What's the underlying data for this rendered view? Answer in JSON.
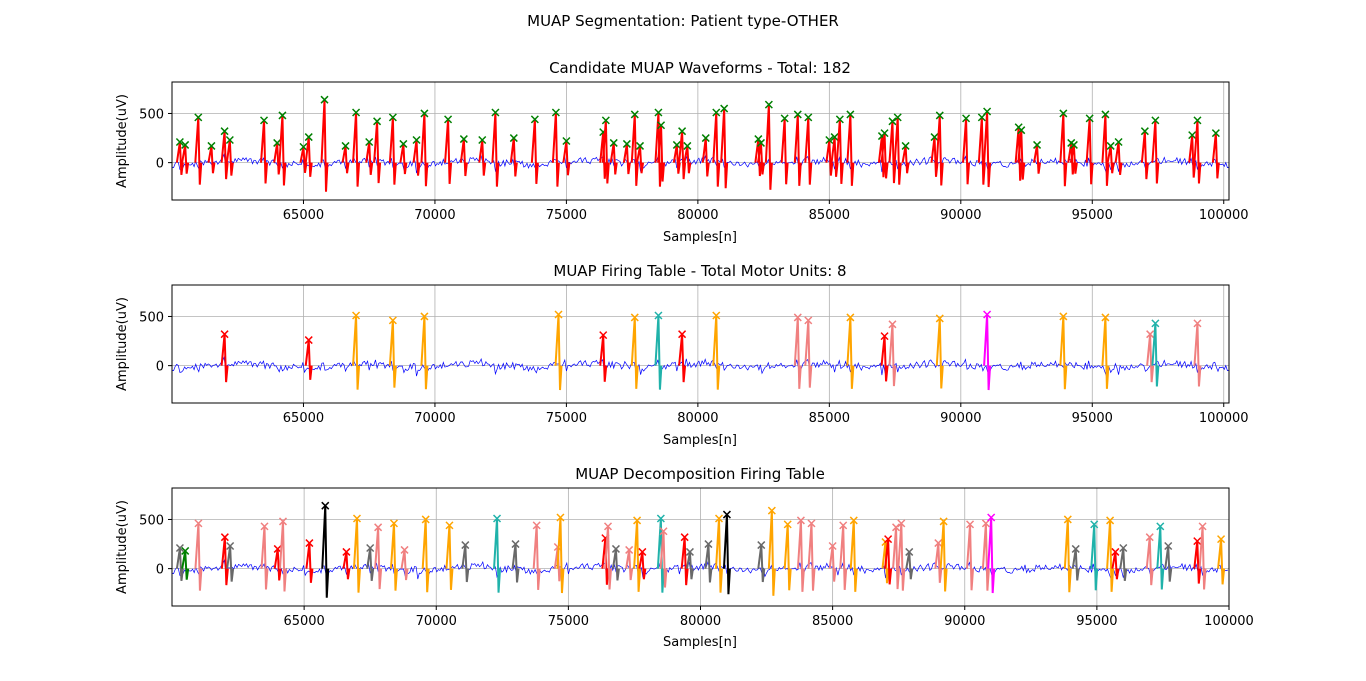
{
  "figure": {
    "suptitle": "MUAP Segmentation: Patient type-OTHER"
  },
  "colors": {
    "signal": "#0000ff",
    "grid": "#b0b0b0",
    "candidate_spike": "#ff0000",
    "candidate_marker": "#008000",
    "mu_palette": {
      "red": "#ff0000",
      "salmon": "#f08080",
      "orange": "#ffa500",
      "teal": "#20b2aa",
      "magenta": "#ff00ff",
      "gray": "#696969",
      "green": "#008000",
      "black": "#000000"
    }
  },
  "chart_data": [
    {
      "type": "line",
      "title": "Candidate MUAP Waveforms - Total: 182",
      "xlabel": "Samples[n]",
      "ylabel": "Amplitude(uV)",
      "xlim": [
        60000,
        100200
      ],
      "ylim": [
        -380,
        820
      ],
      "xticks": [
        65000,
        70000,
        75000,
        80000,
        85000,
        90000,
        95000,
        100000
      ],
      "yticks": [
        0,
        500
      ],
      "grid": true,
      "series": [
        {
          "kind": "spikes",
          "color": "candidate_spike",
          "marker_color": "candidate_marker",
          "peaks": [
            {
              "x": 60300,
              "y": 210
            },
            {
              "x": 60500,
              "y": 180
            },
            {
              "x": 61000,
              "y": 460
            },
            {
              "x": 61500,
              "y": 170
            },
            {
              "x": 62000,
              "y": 320
            },
            {
              "x": 62200,
              "y": 230
            },
            {
              "x": 63500,
              "y": 430
            },
            {
              "x": 64000,
              "y": 200
            },
            {
              "x": 64200,
              "y": 480
            },
            {
              "x": 65000,
              "y": 160
            },
            {
              "x": 65200,
              "y": 260
            },
            {
              "x": 65800,
              "y": 640
            },
            {
              "x": 66600,
              "y": 170
            },
            {
              "x": 67000,
              "y": 510
            },
            {
              "x": 67500,
              "y": 210
            },
            {
              "x": 67800,
              "y": 420
            },
            {
              "x": 68400,
              "y": 460
            },
            {
              "x": 68800,
              "y": 190
            },
            {
              "x": 69300,
              "y": 230
            },
            {
              "x": 69600,
              "y": 500
            },
            {
              "x": 70500,
              "y": 440
            },
            {
              "x": 71100,
              "y": 240
            },
            {
              "x": 71800,
              "y": 230
            },
            {
              "x": 72300,
              "y": 510
            },
            {
              "x": 73000,
              "y": 250
            },
            {
              "x": 73800,
              "y": 440
            },
            {
              "x": 74600,
              "y": 510
            },
            {
              "x": 75000,
              "y": 220
            },
            {
              "x": 76400,
              "y": 310
            },
            {
              "x": 76500,
              "y": 430
            },
            {
              "x": 76800,
              "y": 200
            },
            {
              "x": 77300,
              "y": 190
            },
            {
              "x": 77600,
              "y": 490
            },
            {
              "x": 77800,
              "y": 170
            },
            {
              "x": 78500,
              "y": 510
            },
            {
              "x": 78600,
              "y": 380
            },
            {
              "x": 79200,
              "y": 180
            },
            {
              "x": 79400,
              "y": 320
            },
            {
              "x": 79600,
              "y": 170
            },
            {
              "x": 80300,
              "y": 250
            },
            {
              "x": 80700,
              "y": 510
            },
            {
              "x": 81000,
              "y": 550
            },
            {
              "x": 82300,
              "y": 240
            },
            {
              "x": 82400,
              "y": 200
            },
            {
              "x": 82700,
              "y": 590
            },
            {
              "x": 83300,
              "y": 450
            },
            {
              "x": 83800,
              "y": 490
            },
            {
              "x": 84200,
              "y": 460
            },
            {
              "x": 85000,
              "y": 230
            },
            {
              "x": 85200,
              "y": 260
            },
            {
              "x": 85400,
              "y": 440
            },
            {
              "x": 85800,
              "y": 490
            },
            {
              "x": 87000,
              "y": 270
            },
            {
              "x": 87100,
              "y": 300
            },
            {
              "x": 87400,
              "y": 420
            },
            {
              "x": 87600,
              "y": 460
            },
            {
              "x": 87900,
              "y": 170
            },
            {
              "x": 89000,
              "y": 260
            },
            {
              "x": 89200,
              "y": 480
            },
            {
              "x": 90200,
              "y": 450
            },
            {
              "x": 90800,
              "y": 460
            },
            {
              "x": 91000,
              "y": 520
            },
            {
              "x": 92200,
              "y": 360
            },
            {
              "x": 92300,
              "y": 330
            },
            {
              "x": 92900,
              "y": 180
            },
            {
              "x": 93900,
              "y": 500
            },
            {
              "x": 94200,
              "y": 200
            },
            {
              "x": 94300,
              "y": 180
            },
            {
              "x": 94900,
              "y": 450
            },
            {
              "x": 95500,
              "y": 490
            },
            {
              "x": 95700,
              "y": 170
            },
            {
              "x": 96000,
              "y": 210
            },
            {
              "x": 97000,
              "y": 320
            },
            {
              "x": 97400,
              "y": 430
            },
            {
              "x": 98800,
              "y": 280
            },
            {
              "x": 99000,
              "y": 430
            },
            {
              "x": 99700,
              "y": 300
            }
          ]
        }
      ]
    },
    {
      "type": "line",
      "title": "MUAP Firing Table - Total Motor Units: 8",
      "xlabel": "Samples[n]",
      "ylabel": "Amplitude(uV)",
      "xlim": [
        60000,
        100200
      ],
      "ylim": [
        -380,
        820
      ],
      "xticks": [
        65000,
        70000,
        75000,
        80000,
        85000,
        90000,
        95000,
        100000
      ],
      "yticks": [
        0,
        500
      ],
      "grid": true,
      "series": [
        {
          "kind": "spikes",
          "peaks": [
            {
              "x": 62000,
              "y": 320,
              "c": "red"
            },
            {
              "x": 65200,
              "y": 260,
              "c": "red"
            },
            {
              "x": 67000,
              "y": 510,
              "c": "orange"
            },
            {
              "x": 68400,
              "y": 460,
              "c": "orange"
            },
            {
              "x": 69600,
              "y": 500,
              "c": "orange"
            },
            {
              "x": 74700,
              "y": 520,
              "c": "orange"
            },
            {
              "x": 76400,
              "y": 310,
              "c": "red"
            },
            {
              "x": 77600,
              "y": 490,
              "c": "orange"
            },
            {
              "x": 78500,
              "y": 510,
              "c": "teal"
            },
            {
              "x": 79400,
              "y": 320,
              "c": "red"
            },
            {
              "x": 80700,
              "y": 510,
              "c": "orange"
            },
            {
              "x": 83800,
              "y": 490,
              "c": "salmon"
            },
            {
              "x": 84200,
              "y": 460,
              "c": "salmon"
            },
            {
              "x": 85800,
              "y": 490,
              "c": "orange"
            },
            {
              "x": 87100,
              "y": 300,
              "c": "red"
            },
            {
              "x": 87400,
              "y": 420,
              "c": "salmon"
            },
            {
              "x": 89200,
              "y": 480,
              "c": "orange"
            },
            {
              "x": 91000,
              "y": 520,
              "c": "magenta"
            },
            {
              "x": 93900,
              "y": 500,
              "c": "orange"
            },
            {
              "x": 95500,
              "y": 490,
              "c": "orange"
            },
            {
              "x": 97200,
              "y": 320,
              "c": "salmon"
            },
            {
              "x": 97400,
              "y": 430,
              "c": "teal"
            },
            {
              "x": 99000,
              "y": 430,
              "c": "salmon"
            }
          ]
        }
      ]
    },
    {
      "type": "line",
      "title": "MUAP Decomposition Firing Table",
      "xlabel": "Samples[n]",
      "ylabel": "Amplitude(uV)",
      "xlim": [
        60000,
        100000
      ],
      "ylim": [
        -380,
        820
      ],
      "xticks": [
        65000,
        70000,
        75000,
        80000,
        85000,
        90000,
        95000,
        100000
      ],
      "yticks": [
        0,
        500
      ],
      "grid": true,
      "series": [
        {
          "kind": "spikes",
          "peaks": [
            {
              "x": 60300,
              "y": 210,
              "c": "gray"
            },
            {
              "x": 60500,
              "y": 180,
              "c": "green"
            },
            {
              "x": 61000,
              "y": 460,
              "c": "salmon"
            },
            {
              "x": 62000,
              "y": 320,
              "c": "red"
            },
            {
              "x": 62200,
              "y": 230,
              "c": "gray"
            },
            {
              "x": 63500,
              "y": 430,
              "c": "salmon"
            },
            {
              "x": 64000,
              "y": 200,
              "c": "red"
            },
            {
              "x": 64200,
              "y": 480,
              "c": "salmon"
            },
            {
              "x": 65200,
              "y": 260,
              "c": "red"
            },
            {
              "x": 65800,
              "y": 640,
              "c": "black"
            },
            {
              "x": 66600,
              "y": 170,
              "c": "red"
            },
            {
              "x": 67000,
              "y": 510,
              "c": "orange"
            },
            {
              "x": 67500,
              "y": 210,
              "c": "gray"
            },
            {
              "x": 67800,
              "y": 420,
              "c": "salmon"
            },
            {
              "x": 68400,
              "y": 460,
              "c": "orange"
            },
            {
              "x": 68800,
              "y": 190,
              "c": "salmon"
            },
            {
              "x": 69600,
              "y": 500,
              "c": "orange"
            },
            {
              "x": 70500,
              "y": 440,
              "c": "orange"
            },
            {
              "x": 71100,
              "y": 240,
              "c": "gray"
            },
            {
              "x": 72300,
              "y": 510,
              "c": "teal"
            },
            {
              "x": 73000,
              "y": 250,
              "c": "gray"
            },
            {
              "x": 73800,
              "y": 440,
              "c": "salmon"
            },
            {
              "x": 74600,
              "y": 220,
              "c": "salmon"
            },
            {
              "x": 74700,
              "y": 520,
              "c": "orange"
            },
            {
              "x": 76400,
              "y": 310,
              "c": "red"
            },
            {
              "x": 76500,
              "y": 430,
              "c": "salmon"
            },
            {
              "x": 76800,
              "y": 200,
              "c": "gray"
            },
            {
              "x": 77300,
              "y": 190,
              "c": "salmon"
            },
            {
              "x": 77600,
              "y": 490,
              "c": "orange"
            },
            {
              "x": 77800,
              "y": 170,
              "c": "red"
            },
            {
              "x": 78500,
              "y": 510,
              "c": "teal"
            },
            {
              "x": 78600,
              "y": 380,
              "c": "salmon"
            },
            {
              "x": 79400,
              "y": 320,
              "c": "red"
            },
            {
              "x": 79600,
              "y": 170,
              "c": "gray"
            },
            {
              "x": 80300,
              "y": 250,
              "c": "gray"
            },
            {
              "x": 80700,
              "y": 510,
              "c": "orange"
            },
            {
              "x": 81000,
              "y": 550,
              "c": "black"
            },
            {
              "x": 82300,
              "y": 240,
              "c": "gray"
            },
            {
              "x": 82700,
              "y": 590,
              "c": "orange"
            },
            {
              "x": 83300,
              "y": 450,
              "c": "orange"
            },
            {
              "x": 83800,
              "y": 490,
              "c": "salmon"
            },
            {
              "x": 84200,
              "y": 460,
              "c": "salmon"
            },
            {
              "x": 85000,
              "y": 230,
              "c": "salmon"
            },
            {
              "x": 85400,
              "y": 440,
              "c": "salmon"
            },
            {
              "x": 85800,
              "y": 490,
              "c": "orange"
            },
            {
              "x": 87000,
              "y": 270,
              "c": "orange"
            },
            {
              "x": 87100,
              "y": 300,
              "c": "red"
            },
            {
              "x": 87400,
              "y": 420,
              "c": "salmon"
            },
            {
              "x": 87600,
              "y": 460,
              "c": "salmon"
            },
            {
              "x": 87900,
              "y": 170,
              "c": "gray"
            },
            {
              "x": 89000,
              "y": 260,
              "c": "salmon"
            },
            {
              "x": 89200,
              "y": 480,
              "c": "orange"
            },
            {
              "x": 90200,
              "y": 450,
              "c": "salmon"
            },
            {
              "x": 90800,
              "y": 460,
              "c": "salmon"
            },
            {
              "x": 91000,
              "y": 520,
              "c": "magenta"
            },
            {
              "x": 93900,
              "y": 500,
              "c": "orange"
            },
            {
              "x": 94200,
              "y": 200,
              "c": "gray"
            },
            {
              "x": 94900,
              "y": 450,
              "c": "teal"
            },
            {
              "x": 95500,
              "y": 490,
              "c": "orange"
            },
            {
              "x": 95700,
              "y": 170,
              "c": "red"
            },
            {
              "x": 96000,
              "y": 210,
              "c": "gray"
            },
            {
              "x": 97000,
              "y": 320,
              "c": "salmon"
            },
            {
              "x": 97400,
              "y": 430,
              "c": "teal"
            },
            {
              "x": 97700,
              "y": 230,
              "c": "gray"
            },
            {
              "x": 98800,
              "y": 280,
              "c": "red"
            },
            {
              "x": 99000,
              "y": 430,
              "c": "salmon"
            },
            {
              "x": 99700,
              "y": 300,
              "c": "orange"
            }
          ]
        }
      ]
    }
  ]
}
